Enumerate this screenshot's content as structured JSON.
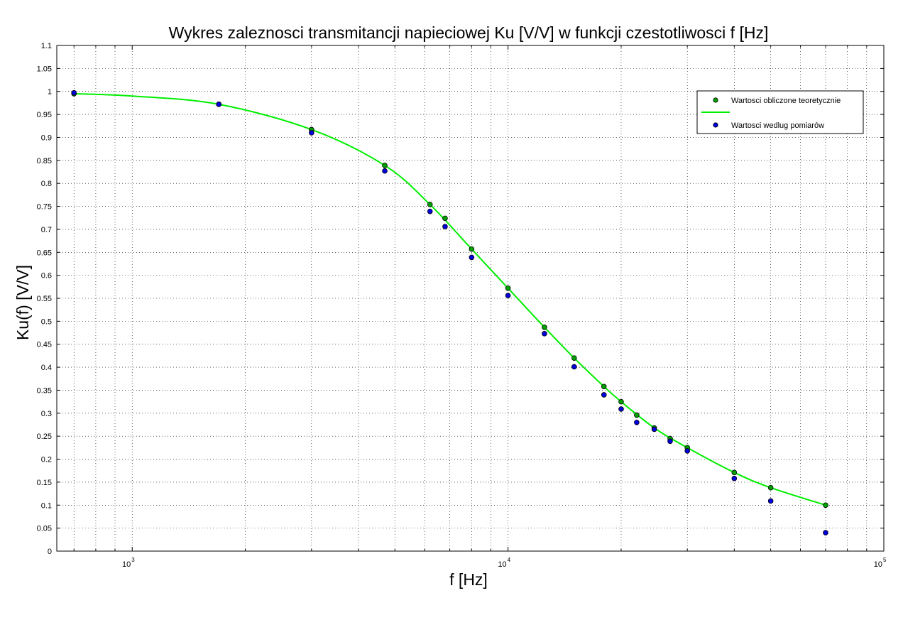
{
  "chart_data": {
    "type": "scatter",
    "title": "Wykres zaleznosci transmitancji napieciowej Ku [V/V] w funkcji czestotliwosci f [Hz]",
    "xlabel": "f [Hz]",
    "ylabel": "Ku(f) [V/V]",
    "x_scale": "log",
    "xlim": [
      630,
      100000
    ],
    "ylim": [
      0,
      1.1
    ],
    "grid": true,
    "legend_position": "top-right",
    "x_ticks": [
      {
        "value": 1000,
        "base": "10",
        "exp": "3"
      },
      {
        "value": 10000,
        "base": "10",
        "exp": "4"
      },
      {
        "value": 100000,
        "base": "10",
        "exp": "5"
      }
    ],
    "y_ticks": [
      "0",
      "0.05",
      "0.1",
      "0.15",
      "0.2",
      "0.25",
      "0.3",
      "0.35",
      "0.4",
      "0.45",
      "0.5",
      "0.55",
      "0.6",
      "0.65",
      "0.7",
      "0.75",
      "0.8",
      "0.85",
      "0.9",
      "0.95",
      "1",
      "1.05",
      "1.1"
    ],
    "series": [
      {
        "name": "Wartosci obliczone teoretycznie",
        "style": "markers",
        "color": "#00a000",
        "x": [
          700,
          1700,
          3000,
          4700,
          6200,
          6800,
          8000,
          10000,
          12500,
          15000,
          18000,
          20000,
          22000,
          24500,
          27000,
          30000,
          40000,
          50000,
          70000
        ],
        "y": [
          0.995,
          0.972,
          0.917,
          0.839,
          0.754,
          0.724,
          0.657,
          0.572,
          0.487,
          0.42,
          0.358,
          0.325,
          0.296,
          0.268,
          0.245,
          0.225,
          0.171,
          0.138,
          0.1
        ]
      },
      {
        "name": "",
        "style": "line",
        "color": "#00ee00",
        "x": [
          700,
          1000,
          1700,
          3000,
          4700,
          6200,
          8000,
          10000,
          12500,
          15000,
          18000,
          20000,
          24500,
          30000,
          40000,
          50000,
          70000
        ],
        "y": [
          0.995,
          0.99,
          0.972,
          0.917,
          0.839,
          0.754,
          0.657,
          0.572,
          0.487,
          0.42,
          0.358,
          0.325,
          0.268,
          0.225,
          0.171,
          0.138,
          0.1
        ]
      },
      {
        "name": "Wartosci wedlug pomiarów",
        "style": "markers",
        "color": "#0000dd",
        "x": [
          700,
          1700,
          3000,
          4700,
          6200,
          6800,
          8000,
          10000,
          12500,
          15000,
          18000,
          20000,
          22000,
          24500,
          27000,
          30000,
          40000,
          50000,
          70000
        ],
        "y": [
          0.997,
          0.972,
          0.91,
          0.827,
          0.739,
          0.706,
          0.639,
          0.556,
          0.473,
          0.401,
          0.34,
          0.309,
          0.28,
          0.265,
          0.239,
          0.218,
          0.158,
          0.109,
          0.04
        ]
      }
    ]
  }
}
